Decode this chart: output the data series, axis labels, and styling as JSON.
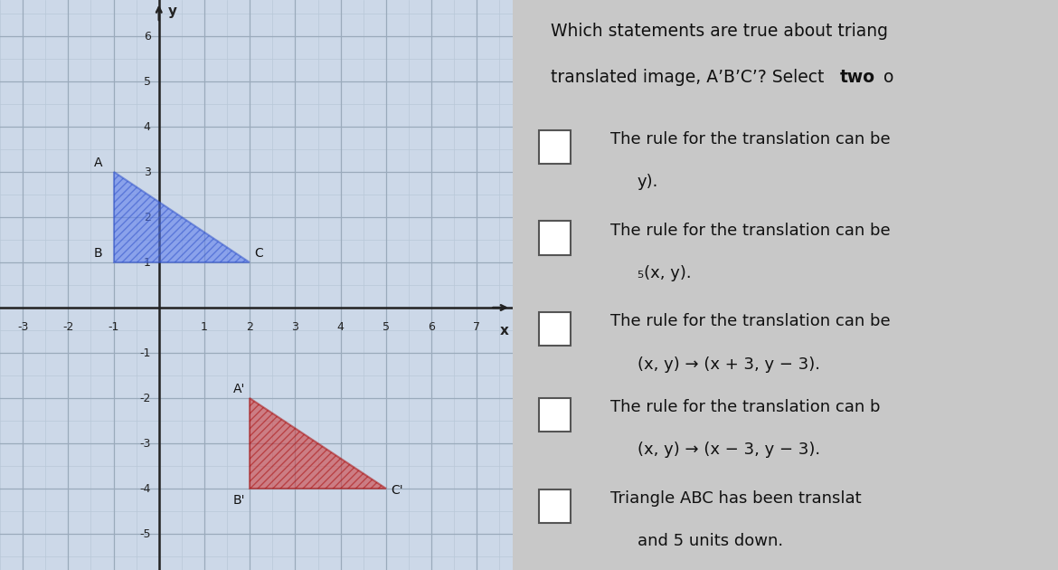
{
  "triangle_ABC": {
    "A": [
      -1,
      3
    ],
    "B": [
      -1,
      1
    ],
    "C": [
      2,
      1
    ],
    "fill_color": "#5577ee",
    "edge_color": "#3355cc",
    "alpha": 0.55,
    "hatch": "////",
    "label_A": "A",
    "label_B": "B",
    "label_C": "C"
  },
  "triangle_A1B1C1": {
    "A1": [
      2,
      -2
    ],
    "B1": [
      2,
      -4
    ],
    "C1": [
      5,
      -4
    ],
    "fill_color": "#cc3333",
    "edge_color": "#aa1111",
    "alpha": 0.55,
    "hatch": "////",
    "label_A1": "A'",
    "label_B1": "B'",
    "label_C1": "C'"
  },
  "grid_background": "#ccd8e8",
  "panel_background": "#c8c8c8",
  "axis_color": "#222222",
  "grid_major_color": "#9aaabb",
  "grid_minor_color": "#b8c8d8",
  "xlim": [
    -3.5,
    7.8
  ],
  "ylim": [
    -5.8,
    6.8
  ],
  "xticks": [
    -3,
    -2,
    -1,
    1,
    2,
    3,
    4,
    5,
    6,
    7
  ],
  "yticks": [
    -5,
    -4,
    -3,
    -2,
    -1,
    1,
    2,
    3,
    4,
    5,
    6
  ],
  "xlabel": "x",
  "ylabel": "y",
  "right_panel_bg": "#cccccc",
  "question_line1": "Which statements are true about triang",
  "question_line2": "translated image, A’B’C’? Select ",
  "question_bold": "two",
  "question_rest": " o",
  "options": [
    [
      "The rule for the translation can be",
      "y)."
    ],
    [
      "The rule for the translation can be",
      "₅(x, y)."
    ],
    [
      "The rule for the translation can be",
      "(x, y) → (x + 3, y − 3)."
    ],
    [
      "The rule for the translation can b",
      "(x, y) → (x − 3, y − 3)."
    ],
    [
      "Triangle ABC has been translat",
      "and 5 units down."
    ]
  ]
}
